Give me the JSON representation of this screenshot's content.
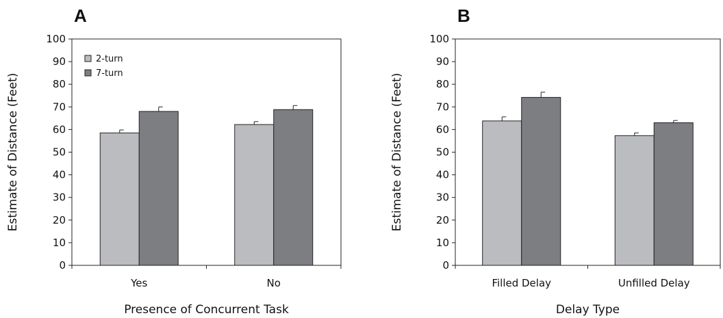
{
  "chart_data": [
    {
      "type": "bar",
      "panel_label": "A",
      "xlabel": "Presence of Concurrent Task",
      "ylabel": "Estimate of Distance (Feet)",
      "ylim": [
        0,
        100
      ],
      "yticks": [
        0,
        10,
        20,
        30,
        40,
        50,
        60,
        70,
        80,
        90,
        100
      ],
      "categories": [
        "Yes",
        "No"
      ],
      "series": [
        {
          "name": "2-turn",
          "color": "#bbbcbf",
          "values": [
            58.5,
            62.2
          ],
          "errors": [
            1.3,
            1.3
          ]
        },
        {
          "name": "7-turn",
          "color": "#7d7e82",
          "values": [
            68.0,
            68.8
          ],
          "errors": [
            2.0,
            1.8
          ]
        }
      ],
      "legend": {
        "show": true,
        "placement": "top-left"
      },
      "grid": false
    },
    {
      "type": "bar",
      "panel_label": "B",
      "xlabel": "Delay Type",
      "ylabel": "Estimate of Distance (Feet)",
      "ylim": [
        0,
        100
      ],
      "yticks": [
        0,
        10,
        20,
        30,
        40,
        50,
        60,
        70,
        80,
        90,
        100
      ],
      "categories": [
        "Filled Delay",
        "Unfilled Delay"
      ],
      "series": [
        {
          "name": "2-turn",
          "color": "#bbbcbf",
          "values": [
            63.8,
            57.3
          ],
          "errors": [
            1.8,
            1.2
          ]
        },
        {
          "name": "7-turn",
          "color": "#7d7e82",
          "values": [
            74.2,
            63.0
          ],
          "errors": [
            2.3,
            1.0
          ]
        }
      ],
      "legend": {
        "show": false,
        "placement": "none"
      },
      "grid": false
    }
  ]
}
